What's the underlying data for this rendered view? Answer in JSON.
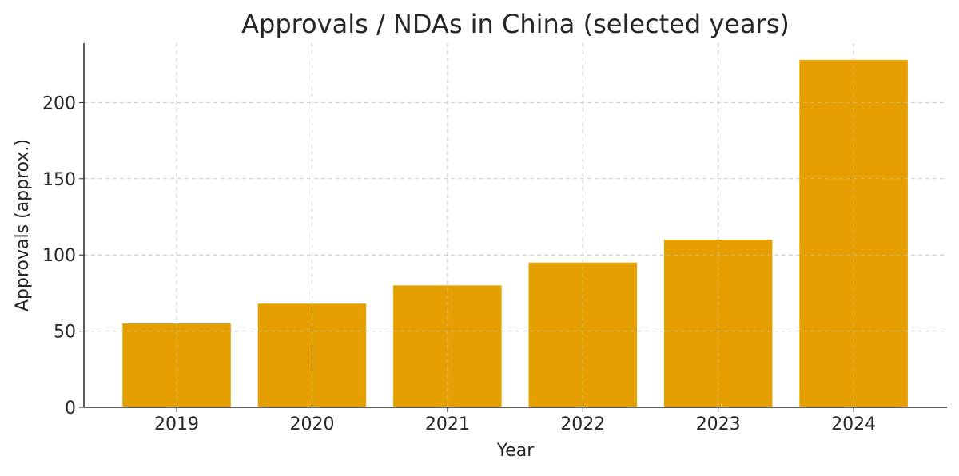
{
  "chart_data": {
    "type": "bar",
    "title": "Approvals / NDAs in China (selected years)",
    "xlabel": "Year",
    "ylabel": "Approvals (approx.)",
    "categories": [
      "2019",
      "2020",
      "2021",
      "2022",
      "2023",
      "2024"
    ],
    "values": [
      55,
      68,
      80,
      95,
      110,
      228
    ],
    "ylim": [
      0,
      239
    ],
    "yticks": [
      0,
      50,
      100,
      150,
      200
    ],
    "grid": true,
    "bar_color": "#E69F00"
  }
}
